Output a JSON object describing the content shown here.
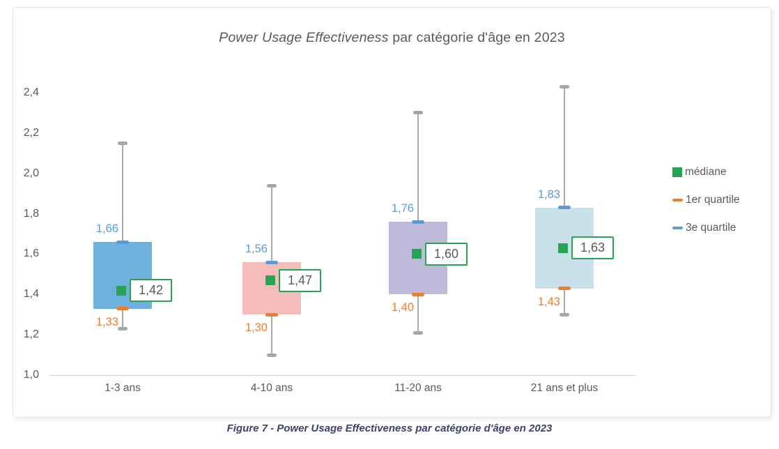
{
  "title": {
    "italic_part": "Power Usage Effectiveness",
    "rest_part": " par catégorie d'âge en 2023"
  },
  "caption": {
    "text": "Figure 7 - Power Usage Effectiveness par catégorie d'âge en 2023"
  },
  "colors": {
    "accent_blue": "#5B9BD5",
    "accent_orange": "#ED7D31",
    "accent_green": "#27A453",
    "box_fills": [
      "#6EB0E0",
      "#F4BDB9",
      "#BFBADA",
      "#CAE0EA"
    ],
    "whisker_gray": "#A6A6A6",
    "axis_gray": "#D9D9D9",
    "text_gray": "#595959",
    "caption_navy": "#3D4168"
  },
  "chart_data": {
    "type": "boxplot",
    "title": "Power Usage Effectiveness par catégorie d'âge en 2023",
    "categories": [
      "1-3 ans",
      "4-10 ans",
      "11-20 ans",
      "21 ans et plus"
    ],
    "series": [
      {
        "name": "1-3 ans",
        "min": 1.23,
        "q1": 1.33,
        "median": 1.42,
        "q3": 1.66,
        "max": 2.15
      },
      {
        "name": "4-10 ans",
        "min": 1.1,
        "q1": 1.3,
        "median": 1.47,
        "q3": 1.56,
        "max": 1.94
      },
      {
        "name": "11-20 ans",
        "min": 1.21,
        "q1": 1.4,
        "median": 1.6,
        "q3": 1.76,
        "max": 2.3
      },
      {
        "name": "21 ans et plus",
        "min": 1.3,
        "q1": 1.43,
        "median": 1.63,
        "q3": 1.83,
        "max": 2.43
      }
    ],
    "labels": {
      "median_labels": [
        "1,42",
        "1,47",
        "1,60",
        "1,63"
      ],
      "q1_labels": [
        "1,33",
        "1,30",
        "1,40",
        "1,43"
      ],
      "q3_labels": [
        "1,66",
        "1,56",
        "1,76",
        "1,83"
      ]
    },
    "y_axis": {
      "min": 1.0,
      "max": 2.4,
      "step": 0.2,
      "tick_labels": [
        "1,0",
        "1,2",
        "1,4",
        "1,6",
        "1,8",
        "2,0",
        "2,2",
        "2,4"
      ]
    },
    "legend": [
      "médiane",
      "1er quartile",
      "3e quartile"
    ],
    "legend_position": "right",
    "grid": false
  }
}
